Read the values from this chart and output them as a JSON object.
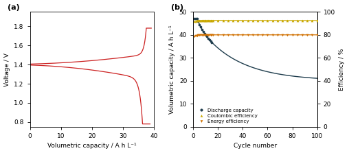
{
  "panel_a": {
    "xlabel": "Volumetric capacity / A h L⁻¹",
    "ylabel": "Voltage / V",
    "xlim": [
      0,
      40
    ],
    "ylim": [
      0.75,
      1.95
    ],
    "yticks": [
      0.8,
      1.0,
      1.2,
      1.4,
      1.6,
      1.8
    ],
    "xticks": [
      0,
      10,
      20,
      30,
      40
    ],
    "line_color": "#cc2222",
    "label": "(a)"
  },
  "panel_b": {
    "xlabel": "Cycle number",
    "ylabel_left": "Volumetric capacity / A h L⁻¹",
    "ylabel_right": "Efficiency / %",
    "xlim": [
      0,
      100
    ],
    "ylim_left": [
      0,
      50
    ],
    "ylim_right": [
      0,
      100
    ],
    "yticks_left": [
      0,
      10,
      20,
      30,
      40,
      50
    ],
    "yticks_right": [
      0,
      20,
      40,
      60,
      80,
      100
    ],
    "xticks": [
      0,
      20,
      40,
      60,
      80,
      100
    ],
    "discharge_color": "#1f3d4d",
    "coulombic_color": "#c9a800",
    "energy_color": "#d07000",
    "label": "(b)",
    "legend_discharge": "Discharge capacity",
    "legend_coulombic": "Coulombic efficiency",
    "legend_energy": "Energy efficiency"
  }
}
